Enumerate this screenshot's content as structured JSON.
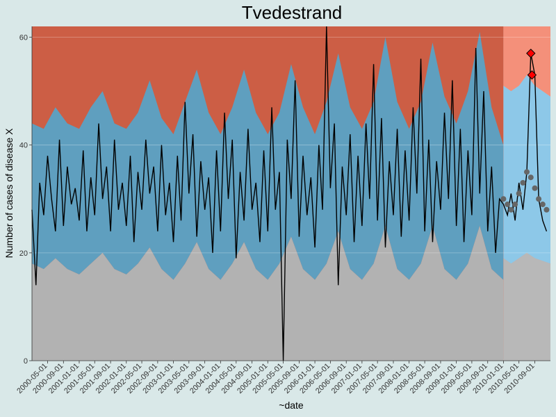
{
  "chart_data": {
    "type": "area",
    "title": "Tvedestrand",
    "xlabel": "~date",
    "ylabel": "Number of cases of disease X",
    "x_range": [
      "2000-01-01",
      "2010-12-31"
    ],
    "y_range": [
      0,
      62
    ],
    "y_ticks": [
      0,
      20,
      40,
      60
    ],
    "x_tick_labels": [
      "2000-05-01",
      "2000-09-01",
      "2001-01-01",
      "2001-05-01",
      "2001-09-01",
      "2002-01-01",
      "2002-05-01",
      "2002-09-01",
      "2003-01-01",
      "2003-05-01",
      "2003-09-01",
      "2004-01-01",
      "2004-05-01",
      "2004-09-01",
      "2005-01-01",
      "2005-05-01",
      "2005-09-01",
      "2006-01-01",
      "2006-05-01",
      "2006-09-01",
      "2007-01-01",
      "2007-05-01",
      "2007-09-01",
      "2008-01-01",
      "2008-05-01",
      "2008-09-01",
      "2009-01-01",
      "2009-05-01",
      "2009-09-01",
      "2010-01-01",
      "2010-05-01",
      "2010-09-01"
    ],
    "forecast_start": "2010-01-01",
    "grid": true,
    "colors": {
      "background": "#d9e8e8",
      "high_zone": "#cc5e45",
      "normal_zone": "#5f9fbf",
      "low_zone": "#b2b2b2",
      "forecast_high": "#f4907a",
      "forecast_normal": "#8dc8e8",
      "forecast_low": "#b8b8b8",
      "observed_line": "#000000",
      "forecast_points": "#666666",
      "alert_marker": "#ff0000"
    },
    "series": [
      {
        "role": "normal-upper-threshold",
        "x": [
          "2000-01-01",
          "2000-04-01",
          "2000-07-01",
          "2000-10-01",
          "2001-01-01",
          "2001-04-01",
          "2001-07-01",
          "2001-10-01",
          "2002-01-01",
          "2002-04-01",
          "2002-07-01",
          "2002-10-01",
          "2003-01-01",
          "2003-04-01",
          "2003-07-01",
          "2003-10-01",
          "2004-01-01",
          "2004-04-01",
          "2004-07-01",
          "2004-10-01",
          "2005-01-01",
          "2005-04-01",
          "2005-07-01",
          "2005-10-01",
          "2006-01-01",
          "2006-04-01",
          "2006-07-01",
          "2006-10-01",
          "2007-01-01",
          "2007-04-01",
          "2007-07-01",
          "2007-10-01",
          "2008-01-01",
          "2008-04-01",
          "2008-07-01",
          "2008-10-01",
          "2009-01-01",
          "2009-04-01",
          "2009-07-01",
          "2009-10-01",
          "2009-12-31"
        ],
        "values": [
          44,
          43,
          47,
          44,
          43,
          47,
          50,
          44,
          43,
          46,
          52,
          45,
          42,
          48,
          54,
          46,
          42,
          47,
          54,
          46,
          42,
          46,
          55,
          47,
          42,
          48,
          57,
          47,
          43,
          48,
          60,
          48,
          43,
          48,
          59,
          49,
          44,
          50,
          61,
          47,
          40
        ]
      },
      {
        "role": "normal-lower-threshold",
        "x": [
          "2000-01-01",
          "2000-04-01",
          "2000-07-01",
          "2000-10-01",
          "2001-01-01",
          "2001-04-01",
          "2001-07-01",
          "2001-10-01",
          "2002-01-01",
          "2002-04-01",
          "2002-07-01",
          "2002-10-01",
          "2003-01-01",
          "2003-04-01",
          "2003-07-01",
          "2003-10-01",
          "2004-01-01",
          "2004-04-01",
          "2004-07-01",
          "2004-10-01",
          "2005-01-01",
          "2005-04-01",
          "2005-07-01",
          "2005-10-01",
          "2006-01-01",
          "2006-04-01",
          "2006-07-01",
          "2006-10-01",
          "2007-01-01",
          "2007-04-01",
          "2007-07-01",
          "2007-10-01",
          "2008-01-01",
          "2008-04-01",
          "2008-07-01",
          "2008-10-01",
          "2009-01-01",
          "2009-04-01",
          "2009-07-01",
          "2009-10-01",
          "2009-12-31"
        ],
        "values": [
          18,
          17,
          19,
          17,
          16,
          18,
          20,
          17,
          16,
          18,
          21,
          17,
          15,
          18,
          22,
          17,
          15,
          18,
          22,
          17,
          15,
          18,
          23,
          17,
          15,
          18,
          24,
          17,
          15,
          18,
          25,
          17,
          15,
          18,
          25,
          17,
          15,
          18,
          25,
          17,
          15
        ]
      },
      {
        "role": "observed-cases",
        "x": [
          "2000-01-01",
          "2000-02-01",
          "2000-03-01",
          "2000-04-01",
          "2000-05-01",
          "2000-06-01",
          "2000-07-01",
          "2000-08-01",
          "2000-09-01",
          "2000-10-01",
          "2000-11-01",
          "2000-12-01",
          "2001-01-01",
          "2001-02-01",
          "2001-03-01",
          "2001-04-01",
          "2001-05-01",
          "2001-06-01",
          "2001-07-01",
          "2001-08-01",
          "2001-09-01",
          "2001-10-01",
          "2001-11-01",
          "2001-12-01",
          "2002-01-01",
          "2002-02-01",
          "2002-03-01",
          "2002-04-01",
          "2002-05-01",
          "2002-06-01",
          "2002-07-01",
          "2002-08-01",
          "2002-09-01",
          "2002-10-01",
          "2002-11-01",
          "2002-12-01",
          "2003-01-01",
          "2003-02-01",
          "2003-03-01",
          "2003-04-01",
          "2003-05-01",
          "2003-06-01",
          "2003-07-01",
          "2003-08-01",
          "2003-09-01",
          "2003-10-01",
          "2003-11-01",
          "2003-12-01",
          "2004-01-01",
          "2004-02-01",
          "2004-03-01",
          "2004-04-01",
          "2004-05-01",
          "2004-06-01",
          "2004-07-01",
          "2004-08-01",
          "2004-09-01",
          "2004-10-01",
          "2004-11-01",
          "2004-12-01",
          "2005-01-01",
          "2005-02-01",
          "2005-03-01",
          "2005-04-01",
          "2005-05-01",
          "2005-06-01",
          "2005-07-01",
          "2005-08-01",
          "2005-09-01",
          "2005-10-01",
          "2005-11-01",
          "2005-12-01",
          "2006-01-01",
          "2006-02-01",
          "2006-03-01",
          "2006-04-01",
          "2006-05-01",
          "2006-06-01",
          "2006-07-01",
          "2006-08-01",
          "2006-09-01",
          "2006-10-01",
          "2006-11-01",
          "2006-12-01",
          "2007-01-01",
          "2007-02-01",
          "2007-03-01",
          "2007-04-01",
          "2007-05-01",
          "2007-06-01",
          "2007-07-01",
          "2007-08-01",
          "2007-09-01",
          "2007-10-01",
          "2007-11-01",
          "2007-12-01",
          "2008-01-01",
          "2008-02-01",
          "2008-03-01",
          "2008-04-01",
          "2008-05-01",
          "2008-06-01",
          "2008-07-01",
          "2008-08-01",
          "2008-09-01",
          "2008-10-01",
          "2008-11-01",
          "2008-12-01",
          "2009-01-01",
          "2009-02-01",
          "2009-03-01",
          "2009-04-01",
          "2009-05-01",
          "2009-06-01",
          "2009-07-01",
          "2009-08-01",
          "2009-09-01",
          "2009-10-01",
          "2009-11-01",
          "2009-12-01",
          "2010-01-01",
          "2010-02-01",
          "2010-03-01",
          "2010-04-01",
          "2010-05-01",
          "2010-06-01",
          "2010-07-01",
          "2010-08-01",
          "2010-09-01",
          "2010-10-01",
          "2010-11-01",
          "2010-12-01"
        ],
        "values": [
          28,
          14,
          33,
          27,
          38,
          30,
          24,
          41,
          25,
          36,
          29,
          32,
          26,
          39,
          24,
          34,
          27,
          44,
          30,
          36,
          24,
          41,
          28,
          33,
          25,
          38,
          22,
          35,
          28,
          41,
          31,
          36,
          24,
          40,
          27,
          33,
          22,
          38,
          26,
          48,
          31,
          42,
          23,
          37,
          28,
          34,
          20,
          39,
          24,
          46,
          30,
          41,
          19,
          35,
          26,
          43,
          28,
          33,
          22,
          39,
          24,
          47,
          28,
          35,
          0,
          41,
          30,
          52,
          23,
          38,
          27,
          34,
          21,
          40,
          28,
          62,
          32,
          44,
          14,
          36,
          27,
          42,
          22,
          38,
          25,
          44,
          30,
          55,
          26,
          45,
          21,
          37,
          27,
          43,
          23,
          39,
          26,
          47,
          31,
          56,
          24,
          41,
          22,
          37,
          28,
          46,
          30,
          52,
          25,
          43,
          22,
          39,
          27,
          58,
          31,
          50,
          24,
          36,
          20,
          30,
          29,
          27,
          31,
          26,
          33,
          28,
          35,
          57,
          53,
          30,
          26,
          24
        ]
      },
      {
        "role": "forecast-median",
        "x": [
          "2010-01-01",
          "2010-02-01",
          "2010-03-01",
          "2010-04-01",
          "2010-05-01",
          "2010-06-01",
          "2010-07-01",
          "2010-08-01",
          "2010-09-01",
          "2010-10-01",
          "2010-11-01",
          "2010-12-01"
        ],
        "values": [
          30,
          29,
          28,
          29,
          31,
          33,
          35,
          34,
          32,
          30,
          29,
          28
        ]
      },
      {
        "role": "forecast-upper",
        "x": [
          "2010-01-01",
          "2010-03-01",
          "2010-05-01",
          "2010-07-01",
          "2010-09-01",
          "2010-12-31"
        ],
        "values": [
          51,
          50,
          51,
          53,
          51,
          49
        ]
      },
      {
        "role": "forecast-lower",
        "x": [
          "2010-01-01",
          "2010-03-01",
          "2010-05-01",
          "2010-07-01",
          "2010-09-01",
          "2010-12-31"
        ],
        "values": [
          19,
          18,
          19,
          20,
          19,
          18
        ]
      }
    ],
    "alerts": [
      {
        "x": "2010-08-01",
        "y": 57
      },
      {
        "x": "2010-08-10",
        "y": 53
      }
    ]
  }
}
